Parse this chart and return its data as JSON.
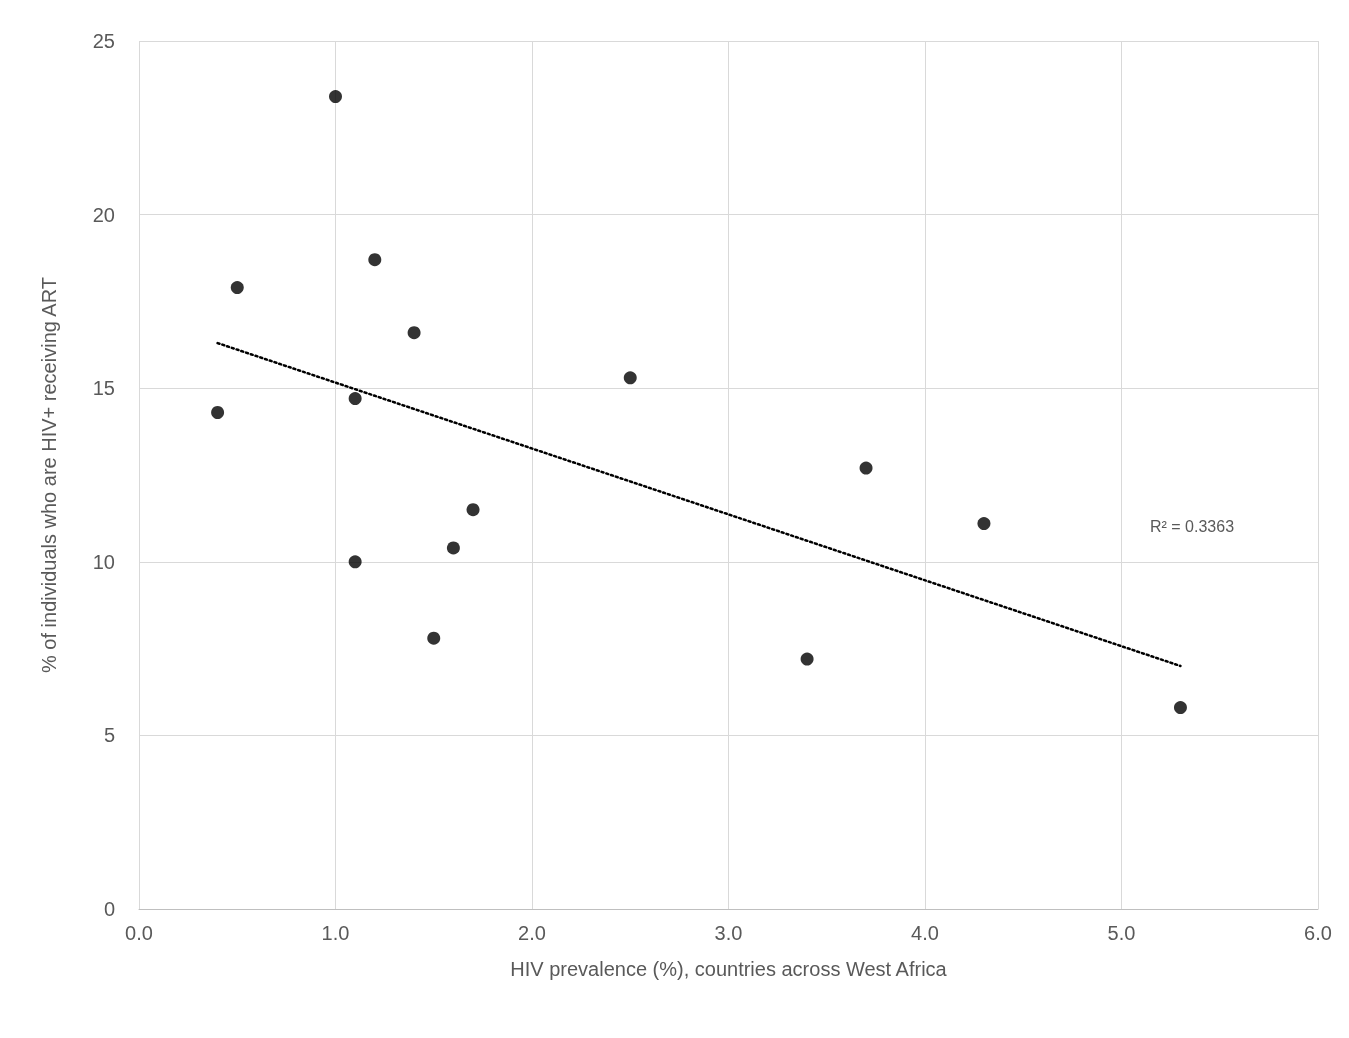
{
  "chart_data": {
    "type": "scatter",
    "xlabel": "HIV prevalence (%), countries across West Africa",
    "ylabel": "% of individuals who are HIV+ receiving ART",
    "series": [
      {
        "color": "#000000",
        "marker": "circle",
        "x": [
          0.4,
          0.5,
          1.0,
          1.1,
          1.1,
          1.2,
          1.4,
          1.5,
          1.6,
          1.7,
          2.5,
          3.4,
          3.7,
          4.3,
          5.3
        ],
        "values": [
          14.3,
          17.9,
          23.4,
          14.7,
          10.0,
          18.7,
          16.6,
          7.8,
          10.4,
          11.5,
          15.3,
          7.2,
          12.7,
          11.1,
          5.8
        ]
      },
      {
        "type": "line",
        "color": "#000000",
        "marker": "none",
        "line_style": "dotted",
        "x": [
          0.4,
          5.3
        ],
        "values": [
          16.3,
          7.0
        ]
      }
    ],
    "annotations": [
      "R² = 0.3363"
    ],
    "xlim": [
      0,
      6
    ],
    "xticks": [
      {
        "value": 0,
        "label": "0.0"
      },
      {
        "value": 1,
        "label": "1.0"
      },
      {
        "value": 2,
        "label": "2.0"
      },
      {
        "value": 3,
        "label": "3.0"
      },
      {
        "value": 4,
        "label": "4.0"
      },
      {
        "value": 5,
        "label": "5.0"
      },
      {
        "value": 6,
        "label": "6.0"
      }
    ],
    "ylim": [
      0,
      25
    ],
    "yticks": [
      0,
      5,
      10,
      15,
      20,
      25
    ],
    "grid": true
  }
}
